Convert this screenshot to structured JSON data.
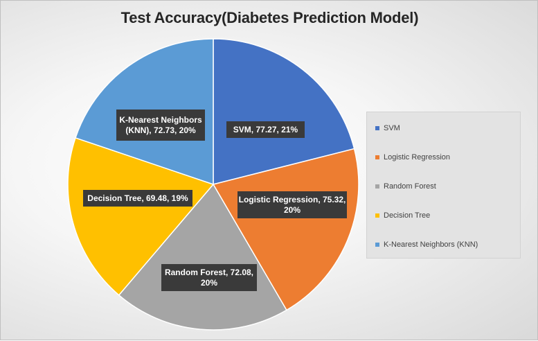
{
  "chart_data": {
    "type": "pie",
    "title": "Test Accuracy(Diabetes Prediction Model)",
    "legend_position": "right",
    "slices": [
      {
        "name": "SVM",
        "value": 77.27,
        "percent_label": "21%",
        "color": "#4472c4",
        "label_lines": [
          "SVM, 77.27, 21%"
        ]
      },
      {
        "name": "Logistic Regression",
        "value": 75.32,
        "percent_label": "20%",
        "color": "#ed7d31",
        "label_lines": [
          "Logistic Regression, 75.32,",
          "20%"
        ]
      },
      {
        "name": "Random Forest",
        "value": 72.08,
        "percent_label": "20%",
        "color": "#a5a5a5",
        "label_lines": [
          "Random Forest, 72.08,",
          "20%"
        ]
      },
      {
        "name": "Decision Tree",
        "value": 69.48,
        "percent_label": "19%",
        "color": "#ffc000",
        "label_lines": [
          "Decision Tree, 69.48, 19%"
        ]
      },
      {
        "name": "K-Nearest Neighbors (KNN)",
        "value": 72.73,
        "percent_label": "20%",
        "color": "#5b9bd5",
        "label_lines": [
          "K-Nearest Neighbors",
          "(KNN), 72.73, 20%"
        ]
      }
    ]
  }
}
